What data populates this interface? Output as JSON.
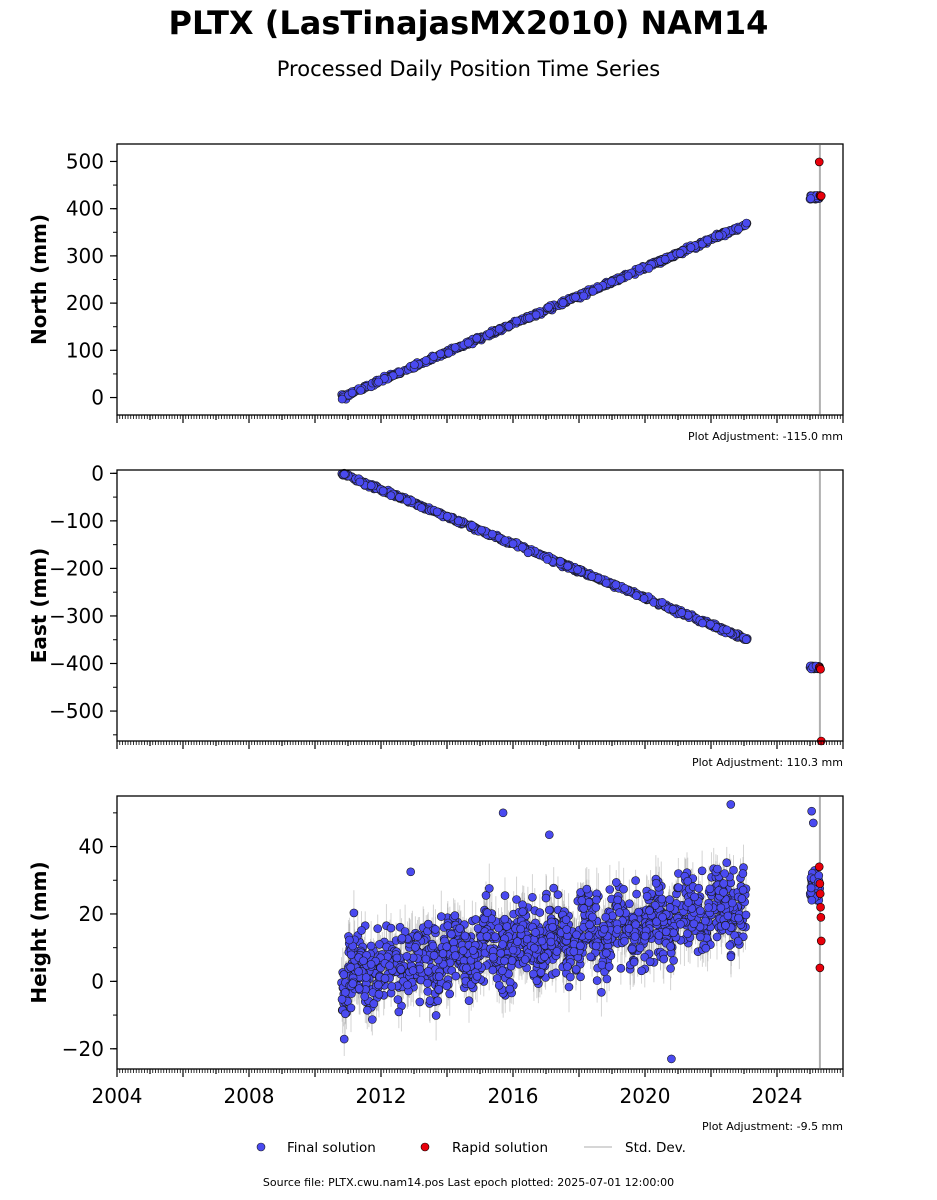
{
  "title": "PLTX (LasTinajasMX2010) NAM14",
  "subtitle": "Processed Daily Position Time Series",
  "source_note": "Source file: PLTX.cwu.nam14.pos  Last epoch plotted: 2025-07-01 12:00:00",
  "legend": {
    "final": "Final solution",
    "rapid": "Rapid solution",
    "std": "Std. Dev."
  },
  "colors": {
    "final": "#4a4af0",
    "rapid": "#e8000b",
    "std": "#b0b0b0",
    "edge": "#1a1a1a"
  },
  "chart_data": [
    {
      "type": "scatter",
      "ylabel": "North (mm)",
      "adjustment": "Plot Adjustment: -115.0 mm",
      "xlim": [
        2004,
        2026
      ],
      "ylim": [
        -37,
        537
      ],
      "yticks": [
        0,
        100,
        200,
        300,
        400,
        500
      ],
      "final_trend": {
        "x": [
          2010.8,
          2023.1
        ],
        "y": [
          0,
          368
        ]
      },
      "final_late": {
        "x": [
          2025.0,
          2025.3
        ],
        "y": [
          420,
          428
        ]
      },
      "rapid": {
        "x": [
          2025.28,
          2025.3,
          2025.32,
          2025.34
        ],
        "y": [
          499,
          428,
          426,
          427
        ]
      },
      "gap_line_x": 2025.3
    },
    {
      "type": "scatter",
      "ylabel": "East (mm)",
      "adjustment": "Plot Adjustment: 110.3 mm",
      "xlim": [
        2004,
        2026
      ],
      "ylim": [
        -563,
        7
      ],
      "yticks": [
        0,
        -100,
        -200,
        -300,
        -400,
        -500
      ],
      "final_trend": {
        "x": [
          2010.8,
          2023.1
        ],
        "y": [
          0,
          -350
        ]
      },
      "final_late": {
        "x": [
          2025.0,
          2025.3
        ],
        "y": [
          -405,
          -412
        ]
      },
      "rapid": {
        "x": [
          2025.28,
          2025.3,
          2025.32,
          2025.34
        ],
        "y": [
          -408,
          -410,
          -412,
          -563
        ]
      },
      "gap_line_x": 2025.3
    },
    {
      "type": "scatter",
      "ylabel": "Height (mm)",
      "adjustment": "Plot Adjustment: -9.5 mm",
      "xlim": [
        2004,
        2026
      ],
      "ylim": [
        -26,
        55
      ],
      "yticks": [
        -20,
        0,
        20,
        40
      ],
      "xticks": [
        2004,
        2008,
        2012,
        2016,
        2020,
        2024
      ],
      "final_trend": {
        "x": [
          2010.8,
          2023.1
        ],
        "y": [
          2,
          22
        ]
      },
      "final_outliers": {
        "x": [
          2015.7,
          2017.1,
          2020.8,
          2022.6,
          2012.9
        ],
        "y": [
          50,
          43.5,
          -23,
          52.5,
          32.5
        ]
      },
      "final_late": {
        "x": [
          2025.0,
          2025.3
        ],
        "y": [
          24,
          33
        ]
      },
      "final_late_outliers": {
        "x": [
          2025.05,
          2025.1
        ],
        "y": [
          50.5,
          47
        ]
      },
      "rapid": {
        "x": [
          2025.28,
          2025.3,
          2025.31,
          2025.32,
          2025.33,
          2025.34,
          2025.3
        ],
        "y": [
          34,
          29,
          26,
          22,
          19,
          12,
          4
        ]
      },
      "gap_line_x": 2025.3
    }
  ]
}
